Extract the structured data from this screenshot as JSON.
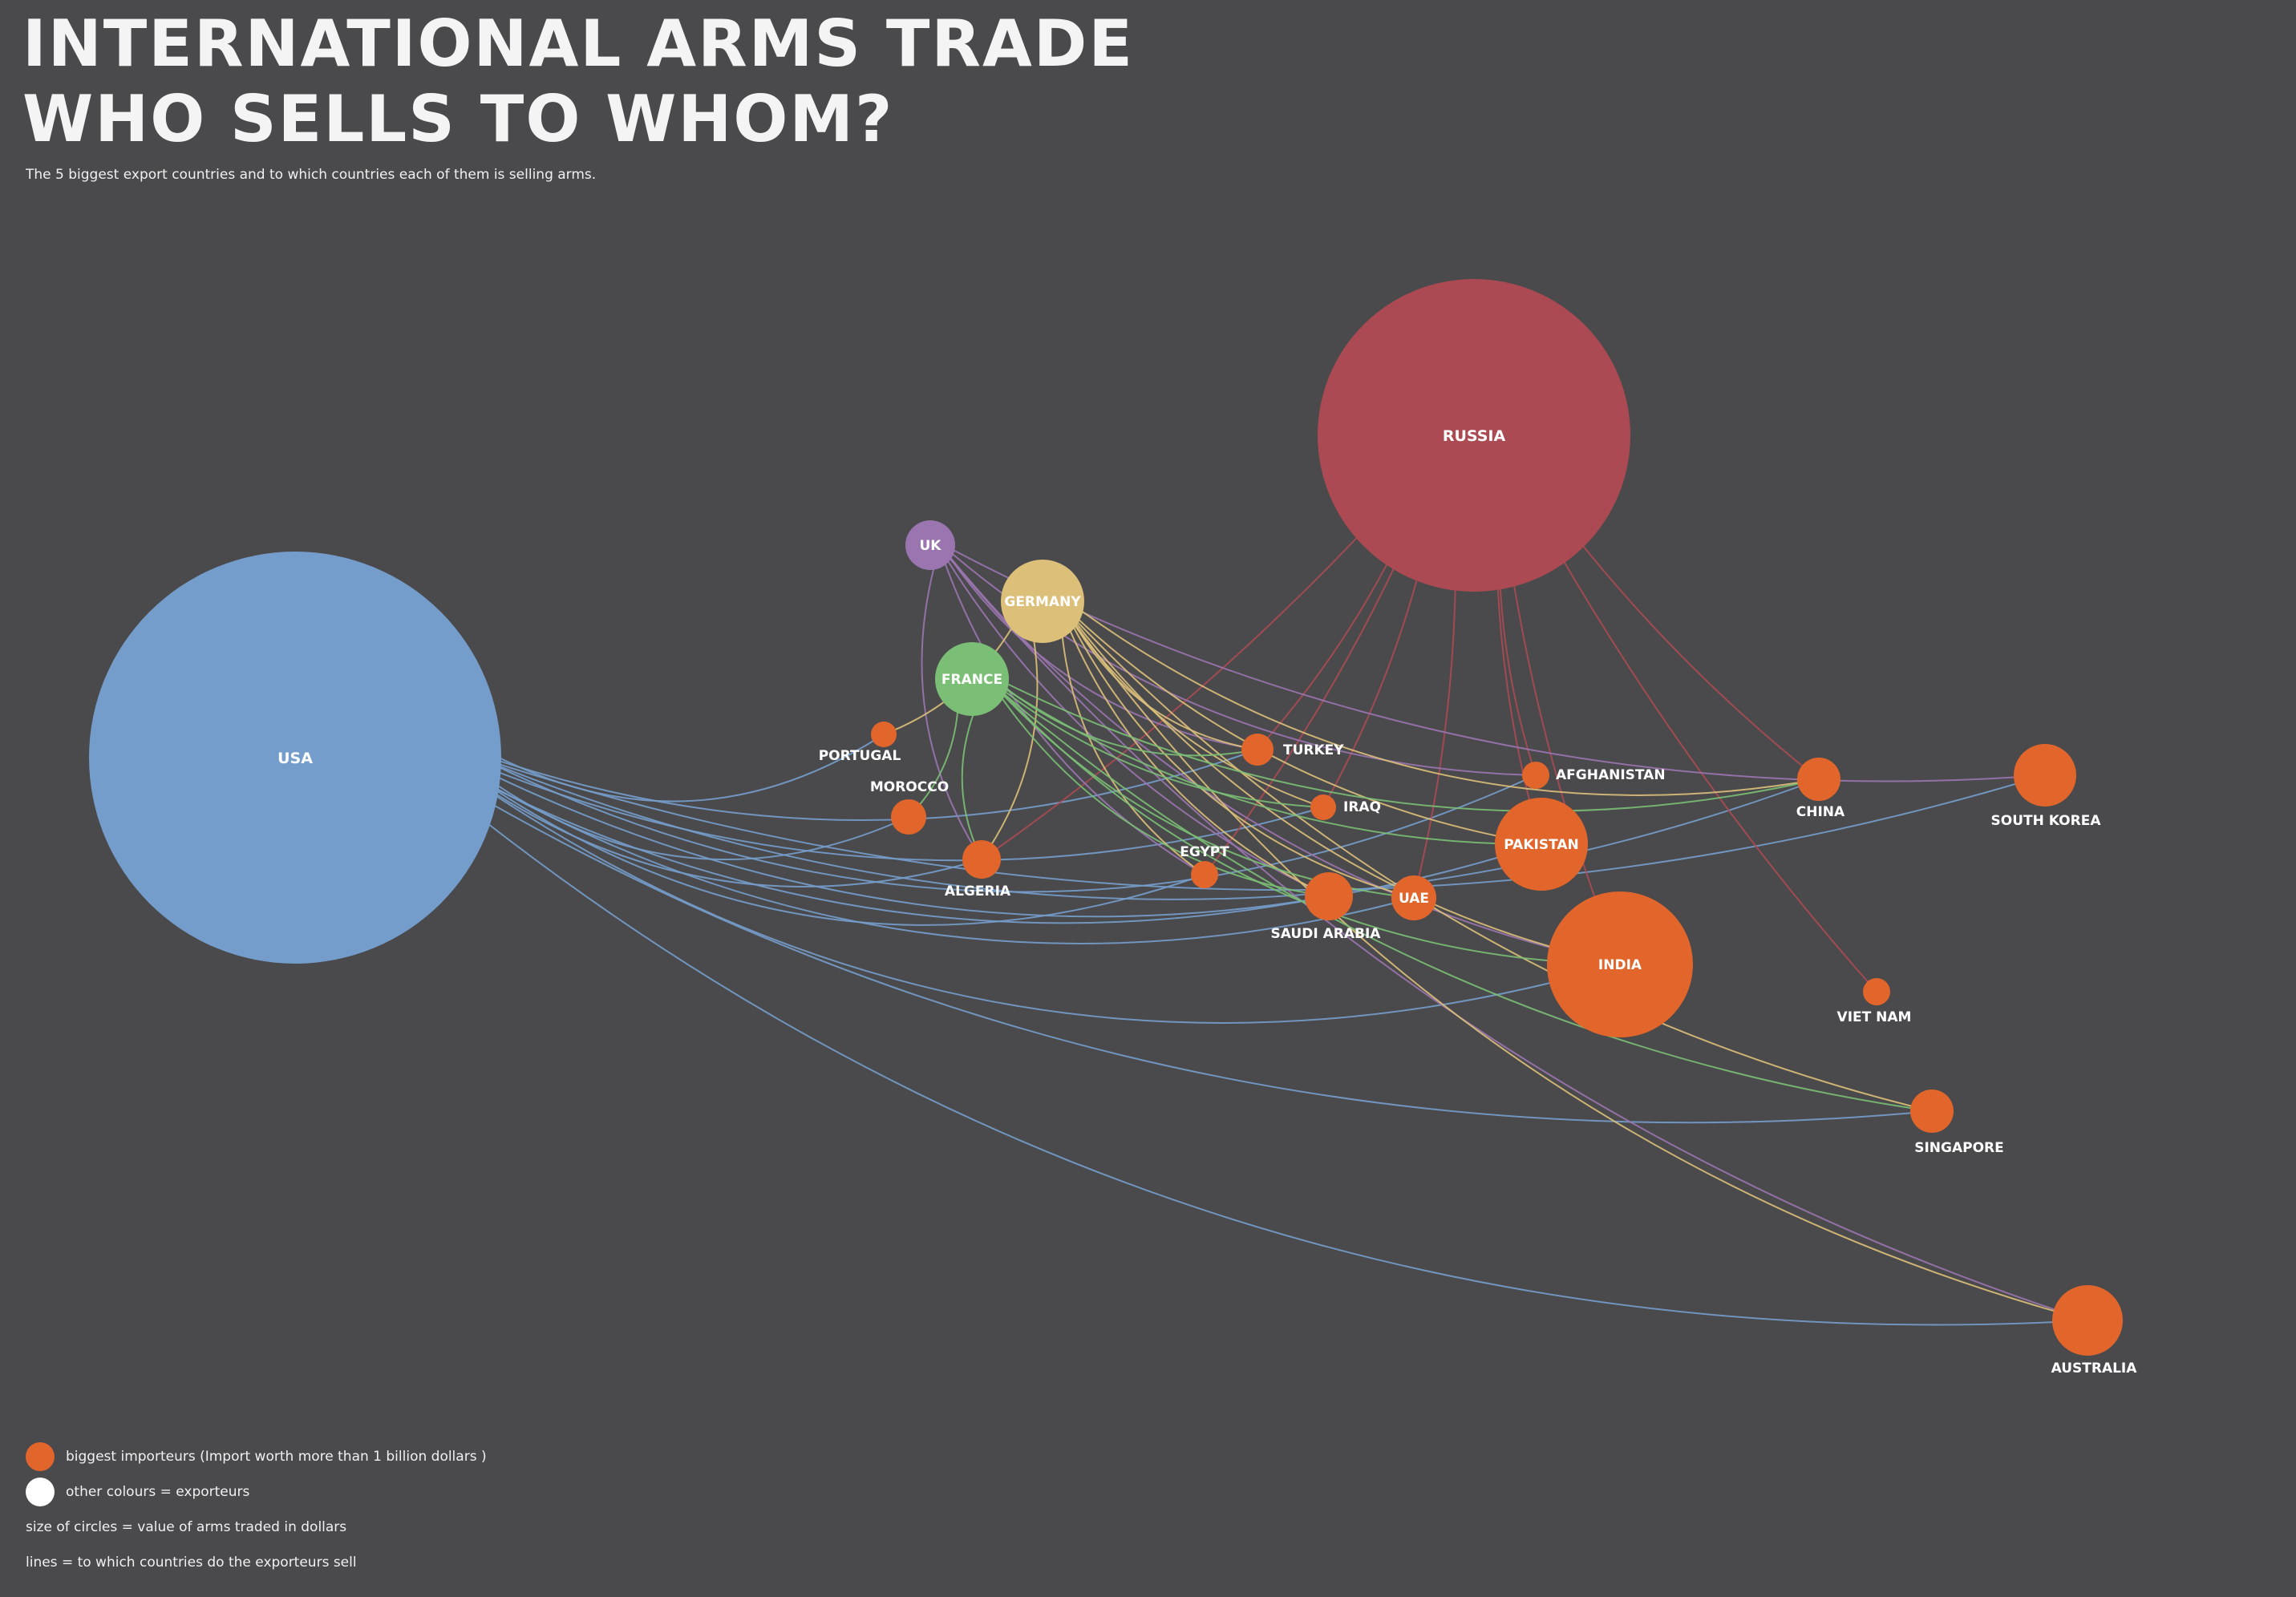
{
  "header": {
    "title_line1": "INTERNATIONAL ARMS TRADE",
    "title_line2": "WHO SELLS TO WHOM?",
    "subtitle": "The 5 biggest export countries and to which countries each of them is selling arms."
  },
  "colors": {
    "background": "#4a4a4c",
    "importer": "#e2662b",
    "usa": "#759dcb",
    "russia": "#ab4a52",
    "uk": "#9b75b0",
    "germany": "#dcc07a",
    "france": "#7bbf76"
  },
  "exporters": [
    {
      "id": "usa",
      "label": "USA",
      "color": "#759dcb"
    },
    {
      "id": "russia",
      "label": "RUSSIA",
      "color": "#ab4a52"
    },
    {
      "id": "uk",
      "label": "UK",
      "color": "#9b75b0"
    },
    {
      "id": "germany",
      "label": "GERMANY",
      "color": "#dcc07a"
    },
    {
      "id": "france",
      "label": "FRANCE",
      "color": "#7bbf76"
    }
  ],
  "importers": [
    {
      "id": "portugal",
      "label": "PORTUGAL"
    },
    {
      "id": "morocco",
      "label": "MOROCCO"
    },
    {
      "id": "algeria",
      "label": "ALGERIA"
    },
    {
      "id": "turkey",
      "label": "TURKEY"
    },
    {
      "id": "iraq",
      "label": "IRAQ"
    },
    {
      "id": "egypt",
      "label": "EGYPT"
    },
    {
      "id": "saudi",
      "label": "SAUDI ARABIA"
    },
    {
      "id": "uae",
      "label": "UAE"
    },
    {
      "id": "afghanistan",
      "label": "AFGHANISTAN"
    },
    {
      "id": "pakistan",
      "label": "PAKISTAN"
    },
    {
      "id": "india",
      "label": "INDIA"
    },
    {
      "id": "china",
      "label": "CHINA"
    },
    {
      "id": "skorea",
      "label": "SOUTH KOREA"
    },
    {
      "id": "vietnam",
      "label": "VIET NAM"
    },
    {
      "id": "singapore",
      "label": "SINGAPORE"
    },
    {
      "id": "australia",
      "label": "AUSTRALIA"
    }
  ],
  "links": {
    "usa": [
      "skorea",
      "china",
      "afghanistan",
      "turkey",
      "pakistan",
      "morocco",
      "iraq",
      "algeria",
      "egypt",
      "saudi",
      "uae",
      "india",
      "singapore",
      "australia",
      "portugal"
    ],
    "russia": [
      "china",
      "vietnam",
      "india",
      "pakistan",
      "afghanistan",
      "uae",
      "iraq",
      "turkey",
      "egypt",
      "algeria"
    ],
    "uk": [
      "skorea",
      "afghanistan",
      "turkey",
      "saudi",
      "india",
      "algeria",
      "australia",
      "egypt"
    ],
    "germany": [
      "portugal",
      "algeria",
      "turkey",
      "iraq",
      "saudi",
      "uae",
      "pakistan",
      "india",
      "china",
      "singapore",
      "australia",
      "egypt"
    ],
    "france": [
      "morocco",
      "algeria",
      "turkey",
      "iraq",
      "uae",
      "india",
      "singapore",
      "china",
      "saudi",
      "pakistan"
    ]
  },
  "legend": {
    "importer_text": "biggest importeurs (Import worth more than 1 billion dollars )",
    "exporter_text": "other colours = exporteurs",
    "size_note": "size of circles = value of arms traded in dollars",
    "lines_note": "lines = to which countries do the exporteurs sell"
  }
}
